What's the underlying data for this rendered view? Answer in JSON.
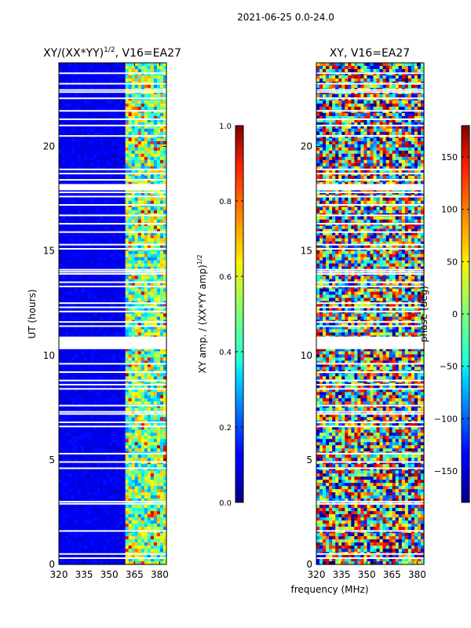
{
  "figure": {
    "suptitle": "2021-06-25 0.0-24.0",
    "xlabel": "frequency (MHz)",
    "ylabel": "UT (hours)"
  },
  "chart_data": [
    {
      "type": "heatmap",
      "title_main": "XY/(XX*YY)",
      "title_sup": "1/2",
      "title_rest": ", V16=EA27",
      "xlabel": "",
      "ylabel": "UT (hours)",
      "xlim": [
        320,
        384
      ],
      "ylim": [
        0,
        24
      ],
      "xticks": [
        320,
        335,
        350,
        365,
        380
      ],
      "yticks": [
        0,
        5,
        10,
        15,
        20
      ],
      "colorbar": {
        "label_main": "XY amp. / (XX*YY amp)",
        "label_sup": "1/2",
        "range": [
          0.0,
          1.0
        ],
        "ticks": [
          "0.0",
          "0.2",
          "0.4",
          "0.6",
          "0.8",
          "1.0"
        ],
        "tick_values": [
          0.0,
          0.2,
          0.4,
          0.6,
          0.8,
          1.0
        ],
        "colormap": "jet"
      },
      "active_band_MHz": [
        360,
        384
      ],
      "gap_ut_hours": [
        0.3,
        0.5,
        1.6,
        2.9,
        3.0,
        4.6,
        4.9,
        5.3,
        6.6,
        6.8,
        7.2,
        7.3,
        7.6,
        8.4,
        8.6,
        8.8,
        9.2,
        9.6,
        11.4,
        11.6,
        12.1,
        12.3,
        12.5,
        13.3,
        13.5,
        13.9,
        14.0,
        14.1,
        15.1,
        15.3,
        15.9,
        16.3,
        16.7,
        17.2,
        17.6,
        17.8,
        18.1,
        18.4,
        18.7,
        18.9,
        20.5,
        21.0,
        21.3,
        21.7,
        22.3,
        22.6,
        22.7,
        23.0,
        23.5
      ],
      "wide_gap_ut_hours": [
        [
          10.3,
          10.9
        ],
        [
          17.9,
          18.2
        ]
      ]
    },
    {
      "type": "heatmap",
      "title_main": "XY, V16=EA27",
      "xlabel": "frequency (MHz)",
      "ylabel": "",
      "xlim": [
        320,
        384
      ],
      "ylim": [
        0,
        24
      ],
      "xticks": [
        320,
        335,
        350,
        365,
        380
      ],
      "yticks": [
        0,
        5,
        10,
        15,
        20
      ],
      "colorbar": {
        "label_main": "phase (deg)",
        "range": [
          -180,
          180
        ],
        "ticks": [
          "−150",
          "−100",
          "−50",
          "0",
          "50",
          "100",
          "150"
        ],
        "tick_values": [
          -150,
          -100,
          -50,
          0,
          50,
          100,
          150
        ],
        "colormap": "jet"
      },
      "gap_ut_hours": [
        0.3,
        0.5,
        1.6,
        2.9,
        3.0,
        4.6,
        4.9,
        5.3,
        6.6,
        6.8,
        7.2,
        7.3,
        7.6,
        8.4,
        8.6,
        8.8,
        9.2,
        9.6,
        11.4,
        11.6,
        12.1,
        12.3,
        12.5,
        13.3,
        13.5,
        13.9,
        14.0,
        14.1,
        15.1,
        15.3,
        15.9,
        16.3,
        16.7,
        17.2,
        17.6,
        17.8,
        18.1,
        18.4,
        18.7,
        18.9,
        20.5,
        21.0,
        21.3,
        21.7,
        22.3,
        22.6,
        22.7,
        23.0,
        23.5
      ],
      "wide_gap_ut_hours": [
        [
          10.3,
          10.9
        ],
        [
          17.9,
          18.2
        ]
      ]
    }
  ]
}
